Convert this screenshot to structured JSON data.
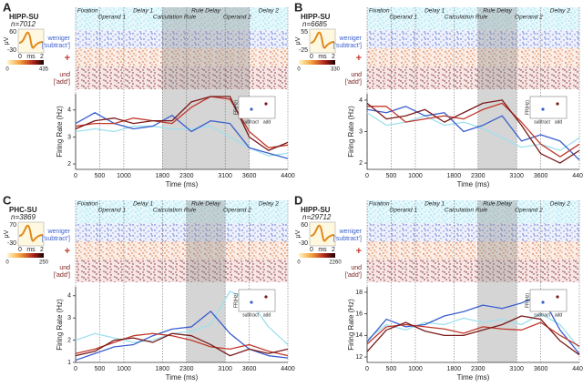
{
  "chart_data": [
    {
      "type": "line",
      "panel": "A",
      "region": "HIPP-SU",
      "n": "n=7012",
      "wave_yticks": [
        60,
        -30
      ],
      "wave_unit": "μV",
      "wave_xticks": [
        0,
        2
      ],
      "wave_xunit": "ms",
      "colorbar": [
        0,
        435
      ],
      "periods": [
        "Fixation",
        "Operand 1",
        "Delay 1",
        "Calculation Rule",
        "Rule Delay",
        "Operand 2",
        "Delay 2"
      ],
      "raster_labels": [
        "weniger",
        "['subtract']",
        "+",
        "und",
        "['add']"
      ],
      "inset_labels": [
        "FR(Hz)",
        "subtract",
        "add"
      ],
      "xlabel": "Time (ms)",
      "ylabel": "Firing Rate (Hz)",
      "shade": [
        1800,
        3600
      ],
      "x": [
        0,
        400,
        800,
        1200,
        1600,
        2000,
        2400,
        2800,
        3200,
        3600,
        4000,
        4400
      ],
      "xlim": [
        0,
        4400
      ],
      "xticks": [
        0,
        500,
        1000,
        1800,
        2300,
        3100,
        3600,
        4400
      ],
      "ylim": [
        1.8,
        4.6
      ],
      "yticks": [
        2,
        3,
        4
      ],
      "series": [
        {
          "color": "#9fe0ee",
          "values": [
            3.2,
            3.3,
            3.2,
            3.4,
            3.4,
            3.3,
            3.3,
            3.4,
            3.0,
            2.6,
            2.3,
            2.4
          ]
        },
        {
          "color": "#3a5fcd",
          "values": [
            3.5,
            3.9,
            3.5,
            3.3,
            3.4,
            3.8,
            3.2,
            3.6,
            3.5,
            2.6,
            2.4,
            2.2
          ]
        },
        {
          "color": "#c0392b",
          "values": [
            3.4,
            3.5,
            3.5,
            3.7,
            3.6,
            3.5,
            4.1,
            4.5,
            4.4,
            3.2,
            2.6,
            2.7
          ]
        },
        {
          "color": "#7a1a1a",
          "values": [
            3.3,
            3.6,
            3.7,
            3.5,
            3.6,
            3.6,
            4.3,
            4.5,
            4.5,
            3.0,
            2.5,
            2.8
          ]
        }
      ]
    },
    {
      "type": "line",
      "panel": "B",
      "region": "HIPP-SU",
      "n": "n=6685",
      "wave_yticks": [
        55,
        -25
      ],
      "wave_unit": "μV",
      "wave_xticks": [
        0,
        2
      ],
      "wave_xunit": "ms",
      "colorbar": [
        0,
        330
      ],
      "periods": [
        "Fixation",
        "Operand 1",
        "Delay 1",
        "Calculation Rule",
        "Rule Delay",
        "Operand 2",
        "Delay 2"
      ],
      "raster_labels": [
        "weniger",
        "['subtract']",
        "+",
        "und",
        "['add']"
      ],
      "inset_labels": [
        "FR(Hz)",
        "subtract",
        "add"
      ],
      "xlabel": "Time (ms)",
      "ylabel": "Firing Rate (Hz)",
      "shade": [
        2300,
        3100
      ],
      "x": [
        0,
        400,
        800,
        1200,
        1600,
        2000,
        2400,
        2800,
        3200,
        3600,
        4000,
        4400
      ],
      "xlim": [
        0,
        4400
      ],
      "xticks": [
        0,
        500,
        1000,
        1800,
        2300,
        3100,
        3600,
        4400
      ],
      "ylim": [
        1.8,
        4.2
      ],
      "yticks": [
        2,
        3,
        4
      ],
      "series": [
        {
          "color": "#9fe0ee",
          "values": [
            3.6,
            3.2,
            3.3,
            3.5,
            3.2,
            3.3,
            3.1,
            2.8,
            2.5,
            2.6,
            2.4,
            2.8
          ]
        },
        {
          "color": "#3a5fcd",
          "values": [
            3.7,
            3.6,
            3.8,
            3.5,
            3.6,
            3.0,
            3.2,
            3.5,
            2.7,
            2.9,
            2.7,
            2.1
          ]
        },
        {
          "color": "#c0392b",
          "values": [
            3.8,
            3.8,
            3.3,
            3.4,
            3.5,
            3.4,
            3.7,
            3.9,
            3.3,
            2.6,
            2.2,
            2.6
          ]
        },
        {
          "color": "#7a1a1a",
          "values": [
            3.9,
            3.4,
            3.5,
            3.7,
            3.3,
            3.6,
            3.9,
            4.0,
            3.2,
            2.3,
            2.0,
            2.4
          ]
        }
      ]
    },
    {
      "type": "line",
      "panel": "C",
      "region": "PHC-SU",
      "n": "n=3869",
      "wave_yticks": [
        70,
        -30
      ],
      "wave_unit": "μV",
      "wave_xticks": [
        0,
        2
      ],
      "wave_xunit": "ms",
      "colorbar": [
        0,
        250
      ],
      "periods": [
        "Fixation",
        "Operand 1",
        "Delay 1",
        "Calculation Rule",
        "Rule Delay",
        "Operand 2",
        "Delay 2"
      ],
      "raster_labels": [
        "weniger",
        "['subtract']",
        "+",
        "und",
        "['add']"
      ],
      "inset_labels": [
        "FR(Hz)",
        "subtract",
        "add"
      ],
      "xlabel": "Time (ms)",
      "ylabel": "Firing Rate (Hz)",
      "shade": [
        2300,
        3100
      ],
      "x": [
        0,
        400,
        800,
        1200,
        1600,
        2000,
        2400,
        2800,
        3200,
        3600,
        4000,
        4400
      ],
      "xlim": [
        0,
        4400
      ],
      "xticks": [
        0,
        500,
        1000,
        1800,
        2300,
        3100,
        3600,
        4400
      ],
      "ylim": [
        1,
        4.4
      ],
      "yticks": [
        1,
        2,
        3,
        4
      ],
      "series": [
        {
          "color": "#9fe0ee",
          "values": [
            2.0,
            2.3,
            2.1,
            1.9,
            2.0,
            2.3,
            2.4,
            2.7,
            4.2,
            3.8,
            2.6,
            1.8
          ]
        },
        {
          "color": "#3a5fcd",
          "values": [
            1.1,
            1.4,
            1.7,
            1.8,
            2.2,
            2.5,
            2.6,
            3.3,
            2.3,
            1.6,
            1.3,
            1.2
          ]
        },
        {
          "color": "#c0392b",
          "values": [
            1.4,
            1.6,
            1.9,
            2.2,
            2.3,
            2.2,
            2.0,
            1.7,
            1.6,
            1.8,
            1.5,
            1.3
          ]
        },
        {
          "color": "#7a1a1a",
          "values": [
            1.3,
            1.5,
            2.0,
            2.1,
            1.9,
            2.3,
            2.2,
            1.8,
            1.3,
            1.6,
            1.4,
            1.6
          ]
        }
      ]
    },
    {
      "type": "line",
      "panel": "D",
      "region": "HIPP-SU",
      "n": "n=29712",
      "wave_yticks": [
        60,
        -30
      ],
      "wave_unit": "μV",
      "wave_xticks": [
        0,
        2
      ],
      "wave_xunit": "ms",
      "colorbar": [
        0,
        2260
      ],
      "periods": [
        "Fixation",
        "Operand 1",
        "Delay 1",
        "Calculation Rule",
        "Rule Delay",
        "Operand 2",
        "Delay 2"
      ],
      "raster_labels": [
        "weniger",
        "['subtract']",
        "+",
        "und",
        "['add']"
      ],
      "inset_labels": [
        "FR(Hz)",
        "subtract",
        "add"
      ],
      "xlabel": "Time (ms)",
      "ylabel": "Firing Rate (Hz)",
      "shade": [
        2300,
        3100
      ],
      "x": [
        0,
        400,
        800,
        1200,
        1600,
        2000,
        2400,
        2800,
        3200,
        3600,
        4000,
        4400
      ],
      "xlim": [
        0,
        4400
      ],
      "xticks": [
        0,
        500,
        1000,
        1800,
        2300,
        3100,
        3600,
        4400
      ],
      "ylim": [
        11.5,
        18.5
      ],
      "yticks": [
        12,
        14,
        16,
        18
      ],
      "series": [
        {
          "color": "#9fe0ee",
          "values": [
            13.6,
            15.0,
            14.5,
            15.2,
            15.0,
            15.6,
            15.2,
            15.5,
            15.0,
            16.0,
            15.0,
            12.8
          ]
        },
        {
          "color": "#3a5fcd",
          "values": [
            13.4,
            15.5,
            14.8,
            15.0,
            15.8,
            16.2,
            16.8,
            16.5,
            17.0,
            17.8,
            14.5,
            12.3
          ]
        },
        {
          "color": "#c0392b",
          "values": [
            13.2,
            14.8,
            15.0,
            14.8,
            14.6,
            14.2,
            14.8,
            14.6,
            14.5,
            15.2,
            14.0,
            13.0
          ]
        },
        {
          "color": "#7a1a1a",
          "values": [
            12.5,
            14.5,
            15.2,
            14.4,
            14.0,
            14.0,
            14.5,
            15.0,
            15.8,
            15.5,
            13.5,
            12.2
          ]
        }
      ]
    }
  ]
}
